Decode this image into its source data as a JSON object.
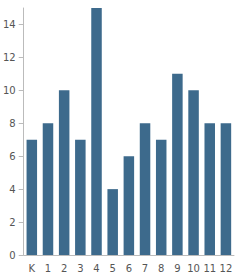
{
  "chart_data": {
    "type": "bar",
    "categories": [
      "K",
      "1",
      "2",
      "3",
      "4",
      "5",
      "6",
      "7",
      "8",
      "9",
      "10",
      "11",
      "12"
    ],
    "values": [
      7,
      8,
      10,
      7,
      15,
      4,
      6,
      8,
      7,
      11,
      10,
      8,
      8
    ],
    "color": "#3d6a8c",
    "ylim": [
      0,
      15
    ],
    "yticks": [
      0,
      2,
      4,
      6,
      8,
      10,
      12,
      14
    ],
    "grid": false
  }
}
